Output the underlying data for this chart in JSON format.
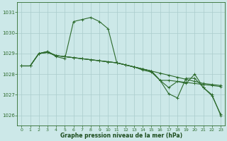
{
  "bg_color": "#cce8e8",
  "grid_color": "#aacccc",
  "line_color": "#2d6b2d",
  "title": "Graphe pression niveau de la mer (hPa)",
  "title_color": "#1a4a1a",
  "xlim": [
    -0.5,
    23.5
  ],
  "ylim": [
    1025.5,
    1031.5
  ],
  "yticks": [
    1026,
    1027,
    1028,
    1029,
    1030,
    1031
  ],
  "xticks": [
    0,
    1,
    2,
    3,
    4,
    5,
    6,
    7,
    8,
    9,
    10,
    11,
    12,
    13,
    14,
    15,
    16,
    17,
    18,
    19,
    20,
    21,
    22,
    23
  ],
  "series": [
    [
      1028.4,
      1028.4,
      1029.0,
      1029.1,
      1028.85,
      1028.75,
      1030.55,
      1030.65,
      1030.75,
      1030.55,
      1030.2,
      1028.55,
      1028.45,
      1028.35,
      1028.2,
      1028.1,
      1027.7,
      1027.05,
      1026.85,
      1027.8,
      1027.8,
      1027.35,
      1027.0,
      1026.0
    ],
    [
      1028.4,
      1028.4,
      1029.0,
      1029.05,
      1028.9,
      1028.85,
      1028.8,
      1028.75,
      1028.7,
      1028.65,
      1028.6,
      1028.55,
      1028.45,
      1028.35,
      1028.25,
      1028.15,
      1028.05,
      1027.95,
      1027.85,
      1027.75,
      1027.65,
      1027.55,
      1027.5,
      1027.45
    ],
    [
      1028.4,
      1028.4,
      1029.0,
      1029.05,
      1028.9,
      1028.85,
      1028.8,
      1028.75,
      1028.7,
      1028.65,
      1028.6,
      1028.55,
      1028.45,
      1028.35,
      1028.25,
      1028.15,
      1027.7,
      1027.7,
      1027.65,
      1027.6,
      1027.55,
      1027.5,
      1027.45,
      1027.4
    ],
    [
      1028.4,
      1028.4,
      1029.0,
      1029.1,
      1028.9,
      1028.85,
      1028.8,
      1028.75,
      1028.7,
      1028.65,
      1028.6,
      1028.55,
      1028.45,
      1028.35,
      1028.25,
      1028.15,
      1027.7,
      1027.35,
      1027.65,
      1027.55,
      1028.0,
      1027.35,
      1026.95,
      1026.05
    ]
  ]
}
